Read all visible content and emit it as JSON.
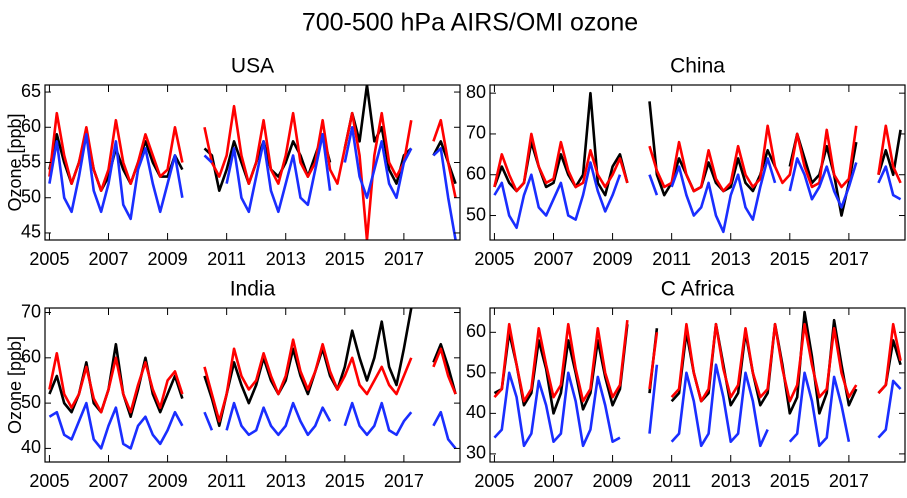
{
  "title": "700-500 hPa AIRS/OMI ozone",
  "chart_data": [
    {
      "type": "line",
      "title": "USA",
      "ylabel": "Ozone [ppb]",
      "xlim": [
        2004.85,
        2018.9
      ],
      "ylim": [
        44,
        66
      ],
      "xticks": [
        2005,
        2007,
        2009,
        2011,
        2013,
        2015,
        2017
      ],
      "yticks": [
        45,
        50,
        55,
        60,
        65
      ],
      "x": [
        2005,
        2005.25,
        2005.5,
        2005.75,
        2006,
        2006.25,
        2006.5,
        2006.75,
        2007,
        2007.25,
        2007.5,
        2007.75,
        2008,
        2008.25,
        2008.5,
        2008.75,
        2009,
        2009.25,
        2009.5,
        2009.75,
        2010,
        2010.25,
        2010.5,
        2010.75,
        2011,
        2011.25,
        2011.5,
        2011.75,
        2012,
        2012.25,
        2012.5,
        2012.75,
        2013,
        2013.25,
        2013.5,
        2013.75,
        2014,
        2014.25,
        2014.5,
        2014.75,
        2015,
        2015.25,
        2015.5,
        2015.75,
        2016,
        2016.25,
        2016.5,
        2016.75,
        2017,
        2017.25,
        2017.5,
        2017.75,
        2018,
        2018.25,
        2018.5,
        2018.75
      ],
      "series": [
        {
          "color": "#000000",
          "values": [
            54,
            59,
            55,
            52,
            55,
            59,
            54,
            51,
            53,
            57,
            54,
            52,
            55,
            58,
            55,
            53,
            53,
            56,
            54,
            null,
            null,
            57,
            56,
            51,
            54,
            58,
            55,
            52,
            55,
            58,
            54,
            53,
            55,
            58,
            56,
            53,
            56,
            59,
            55,
            null,
            57,
            62,
            58,
            66,
            58,
            60,
            54,
            52,
            56,
            57,
            null,
            null,
            56,
            58,
            55,
            52
          ]
        },
        {
          "color": "#ff0000",
          "values": [
            53,
            62,
            56,
            52,
            55,
            60,
            54,
            51,
            54,
            61,
            55,
            52,
            55,
            59,
            56,
            53,
            54,
            60,
            55,
            null,
            null,
            60,
            55,
            53,
            56,
            63,
            56,
            52,
            55,
            61,
            54,
            52,
            56,
            62,
            55,
            53,
            55,
            61,
            54,
            52,
            57,
            62,
            56,
            44,
            56,
            62,
            55,
            53,
            55,
            61,
            null,
            null,
            58,
            61,
            55,
            50
          ]
        },
        {
          "color": "#1a2eff",
          "values": [
            52,
            58,
            50,
            48,
            53,
            59,
            51,
            48,
            52,
            58,
            49,
            47,
            54,
            57,
            52,
            48,
            52,
            56,
            50,
            null,
            null,
            56,
            55,
            null,
            52,
            57,
            50,
            48,
            53,
            58,
            51,
            48,
            52,
            56,
            50,
            49,
            54,
            59,
            51,
            null,
            55,
            60,
            53,
            50,
            54,
            58,
            52,
            50,
            55,
            57,
            null,
            null,
            56,
            57,
            50,
            44
          ]
        }
      ]
    },
    {
      "type": "line",
      "title": "China",
      "xlim": [
        2004.85,
        2018.9
      ],
      "ylim": [
        44,
        82
      ],
      "xticks": [
        2005,
        2007,
        2009,
        2011,
        2013,
        2015,
        2017
      ],
      "yticks": [
        50,
        60,
        70,
        80
      ],
      "x": [
        2005,
        2005.25,
        2005.5,
        2005.75,
        2006,
        2006.25,
        2006.5,
        2006.75,
        2007,
        2007.25,
        2007.5,
        2007.75,
        2008,
        2008.25,
        2008.5,
        2008.75,
        2009,
        2009.25,
        2009.5,
        2009.75,
        2010,
        2010.25,
        2010.5,
        2010.75,
        2011,
        2011.25,
        2011.5,
        2011.75,
        2012,
        2012.25,
        2012.5,
        2012.75,
        2013,
        2013.25,
        2013.5,
        2013.75,
        2014,
        2014.25,
        2014.5,
        2014.75,
        2015,
        2015.25,
        2015.5,
        2015.75,
        2016,
        2016.25,
        2016.5,
        2016.75,
        2017,
        2017.25,
        2017.5,
        2017.75,
        2018,
        2018.25,
        2018.5,
        2018.75
      ],
      "series": [
        {
          "color": "#000000",
          "values": [
            57,
            62,
            58,
            56,
            58,
            68,
            62,
            57,
            58,
            65,
            60,
            57,
            60,
            80,
            58,
            55,
            62,
            65,
            58,
            null,
            null,
            78,
            60,
            55,
            58,
            64,
            60,
            56,
            57,
            63,
            58,
            56,
            57,
            64,
            58,
            56,
            60,
            66,
            62,
            null,
            62,
            70,
            64,
            58,
            60,
            67,
            60,
            50,
            58,
            68,
            null,
            null,
            60,
            66,
            60,
            71
          ]
        },
        {
          "color": "#ff0000",
          "values": [
            57,
            65,
            60,
            56,
            58,
            70,
            62,
            58,
            59,
            68,
            61,
            57,
            58,
            66,
            60,
            57,
            60,
            64,
            58,
            null,
            null,
            67,
            61,
            57,
            58,
            68,
            60,
            56,
            57,
            66,
            59,
            56,
            58,
            67,
            60,
            57,
            59,
            72,
            62,
            58,
            60,
            70,
            62,
            57,
            58,
            71,
            60,
            57,
            59,
            72,
            null,
            null,
            60,
            72,
            62,
            58
          ]
        },
        {
          "color": "#1a2eff",
          "values": [
            55,
            58,
            50,
            47,
            55,
            60,
            52,
            50,
            54,
            58,
            50,
            49,
            55,
            63,
            56,
            51,
            55,
            60,
            null,
            null,
            null,
            60,
            55,
            null,
            57,
            62,
            55,
            50,
            52,
            58,
            50,
            46,
            55,
            60,
            52,
            49,
            57,
            64,
            58,
            null,
            56,
            64,
            60,
            54,
            57,
            62,
            56,
            52,
            57,
            63,
            null,
            null,
            58,
            62,
            55,
            54
          ]
        }
      ]
    },
    {
      "type": "line",
      "title": "India",
      "ylabel": "Ozone [ppb]",
      "xlim": [
        2004.85,
        2018.9
      ],
      "ylim": [
        37,
        71
      ],
      "xticks": [
        2005,
        2007,
        2009,
        2011,
        2013,
        2015,
        2017
      ],
      "yticks": [
        40,
        50,
        60,
        70
      ],
      "x": [
        2005,
        2005.25,
        2005.5,
        2005.75,
        2006,
        2006.25,
        2006.5,
        2006.75,
        2007,
        2007.25,
        2007.5,
        2007.75,
        2008,
        2008.25,
        2008.5,
        2008.75,
        2009,
        2009.25,
        2009.5,
        2009.75,
        2010,
        2010.25,
        2010.5,
        2010.75,
        2011,
        2011.25,
        2011.5,
        2011.75,
        2012,
        2012.25,
        2012.5,
        2012.75,
        2013,
        2013.25,
        2013.5,
        2013.75,
        2014,
        2014.25,
        2014.5,
        2014.75,
        2015,
        2015.25,
        2015.5,
        2015.75,
        2016,
        2016.25,
        2016.5,
        2016.75,
        2017,
        2017.25,
        2017.5,
        2017.75,
        2018,
        2018.25,
        2018.5,
        2018.75
      ],
      "series": [
        {
          "color": "#000000",
          "values": [
            52,
            56,
            50,
            48,
            52,
            59,
            50,
            48,
            53,
            63,
            52,
            47,
            53,
            60,
            52,
            48,
            52,
            56,
            51,
            null,
            null,
            56,
            51,
            45,
            52,
            59,
            54,
            50,
            54,
            60,
            55,
            52,
            55,
            62,
            56,
            52,
            57,
            62,
            56,
            53,
            58,
            66,
            60,
            55,
            60,
            68,
            58,
            54,
            62,
            71,
            null,
            null,
            59,
            63,
            58,
            52
          ]
        },
        {
          "color": "#ff0000",
          "values": [
            53,
            61,
            52,
            49,
            52,
            58,
            51,
            48,
            53,
            60,
            52,
            48,
            54,
            59,
            53,
            49,
            55,
            57,
            52,
            null,
            null,
            58,
            52,
            46,
            52,
            62,
            56,
            53,
            55,
            61,
            56,
            52,
            56,
            64,
            57,
            53,
            57,
            63,
            57,
            53,
            56,
            60,
            54,
            52,
            55,
            58,
            54,
            52,
            56,
            60,
            null,
            null,
            58,
            62,
            56,
            52
          ]
        },
        {
          "color": "#1a2eff",
          "values": [
            47,
            48,
            43,
            42,
            46,
            50,
            42,
            40,
            45,
            49,
            41,
            40,
            45,
            47,
            43,
            41,
            44,
            48,
            45,
            null,
            null,
            48,
            44,
            null,
            44,
            50,
            45,
            43,
            44,
            49,
            45,
            43,
            45,
            50,
            46,
            43,
            45,
            49,
            46,
            null,
            45,
            50,
            45,
            43,
            45,
            50,
            44,
            43,
            46,
            48,
            null,
            null,
            45,
            48,
            42,
            40
          ]
        }
      ]
    },
    {
      "type": "line",
      "title": "C Africa",
      "xlim": [
        2004.85,
        2018.9
      ],
      "ylim": [
        28,
        66
      ],
      "xticks": [
        2005,
        2007,
        2009,
        2011,
        2013,
        2015,
        2017
      ],
      "yticks": [
        30,
        40,
        50,
        60
      ],
      "x": [
        2005,
        2005.25,
        2005.5,
        2005.75,
        2006,
        2006.25,
        2006.5,
        2006.75,
        2007,
        2007.25,
        2007.5,
        2007.75,
        2008,
        2008.25,
        2008.5,
        2008.75,
        2009,
        2009.25,
        2009.5,
        2009.75,
        2010,
        2010.25,
        2010.5,
        2010.75,
        2011,
        2011.25,
        2011.5,
        2011.75,
        2012,
        2012.25,
        2012.5,
        2012.75,
        2013,
        2013.25,
        2013.5,
        2013.75,
        2014,
        2014.25,
        2014.5,
        2014.75,
        2015,
        2015.25,
        2015.5,
        2015.75,
        2016,
        2016.25,
        2016.5,
        2016.75,
        2017,
        2017.25,
        2017.5,
        2017.75,
        2018,
        2018.25,
        2018.5,
        2018.75
      ],
      "series": [
        {
          "color": "#000000",
          "values": [
            45,
            46,
            60,
            52,
            42,
            45,
            58,
            51,
            40,
            45,
            58,
            50,
            41,
            45,
            58,
            49,
            42,
            46,
            62,
            null,
            null,
            45,
            61,
            null,
            43,
            45,
            60,
            50,
            43,
            45,
            62,
            52,
            42,
            45,
            60,
            50,
            42,
            45,
            62,
            52,
            40,
            44,
            65,
            54,
            40,
            45,
            63,
            52,
            42,
            46,
            null,
            null,
            45,
            47,
            58,
            52
          ]
        },
        {
          "color": "#ff0000",
          "values": [
            44,
            46,
            62,
            52,
            43,
            46,
            61,
            52,
            44,
            47,
            62,
            51,
            43,
            46,
            61,
            50,
            44,
            47,
            63,
            null,
            null,
            46,
            60,
            null,
            44,
            46,
            62,
            50,
            43,
            46,
            62,
            51,
            44,
            47,
            61,
            50,
            44,
            46,
            62,
            51,
            43,
            47,
            62,
            52,
            44,
            46,
            61,
            50,
            44,
            47,
            null,
            null,
            45,
            47,
            62,
            53
          ]
        },
        {
          "color": "#1a2eff",
          "values": [
            34,
            36,
            50,
            44,
            32,
            35,
            48,
            42,
            33,
            35,
            50,
            43,
            32,
            36,
            49,
            42,
            33,
            34,
            null,
            null,
            null,
            35,
            52,
            null,
            33,
            35,
            50,
            43,
            32,
            35,
            52,
            44,
            33,
            35,
            50,
            43,
            32,
            36,
            null,
            null,
            33,
            35,
            50,
            43,
            32,
            34,
            49,
            42,
            33,
            null,
            null,
            null,
            34,
            36,
            48,
            46
          ]
        }
      ]
    }
  ]
}
